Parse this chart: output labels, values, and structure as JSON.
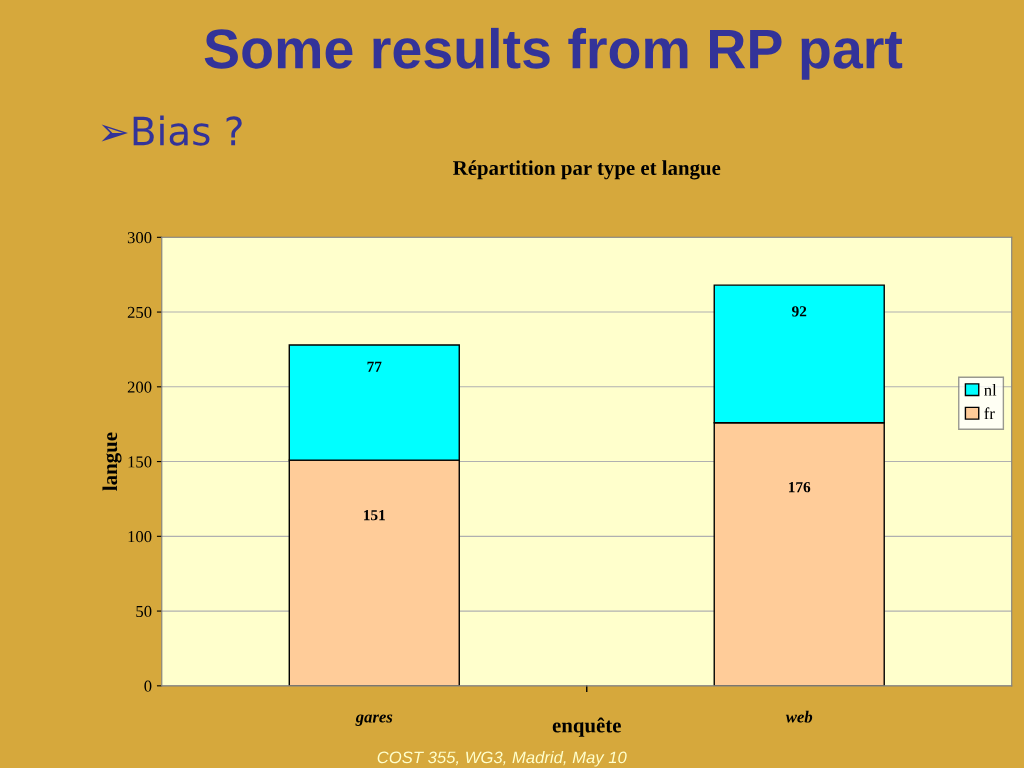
{
  "chart_data": {
    "type": "bar",
    "title": "Répartition par type et langue",
    "subtitle": "Some results from RP part",
    "annotations": [
      "➢Bias ?",
      "COST 355, WG3, Madrid, May 10"
    ],
    "xlabel": "enquête",
    "ylabel": "langue",
    "categories": [
      "gares",
      "web"
    ],
    "series": [
      {
        "name": "fr",
        "color": "#ffcc99",
        "values": [
          151,
          176
        ]
      },
      {
        "name": "nl",
        "color": "#00ffff",
        "values": [
          77,
          92
        ]
      }
    ],
    "stacked": true,
    "data_labels": true,
    "ylim": [
      0,
      300
    ],
    "yticks": [
      0,
      50,
      100,
      150,
      200,
      250,
      300
    ],
    "grid": "y",
    "legend": "right"
  }
}
